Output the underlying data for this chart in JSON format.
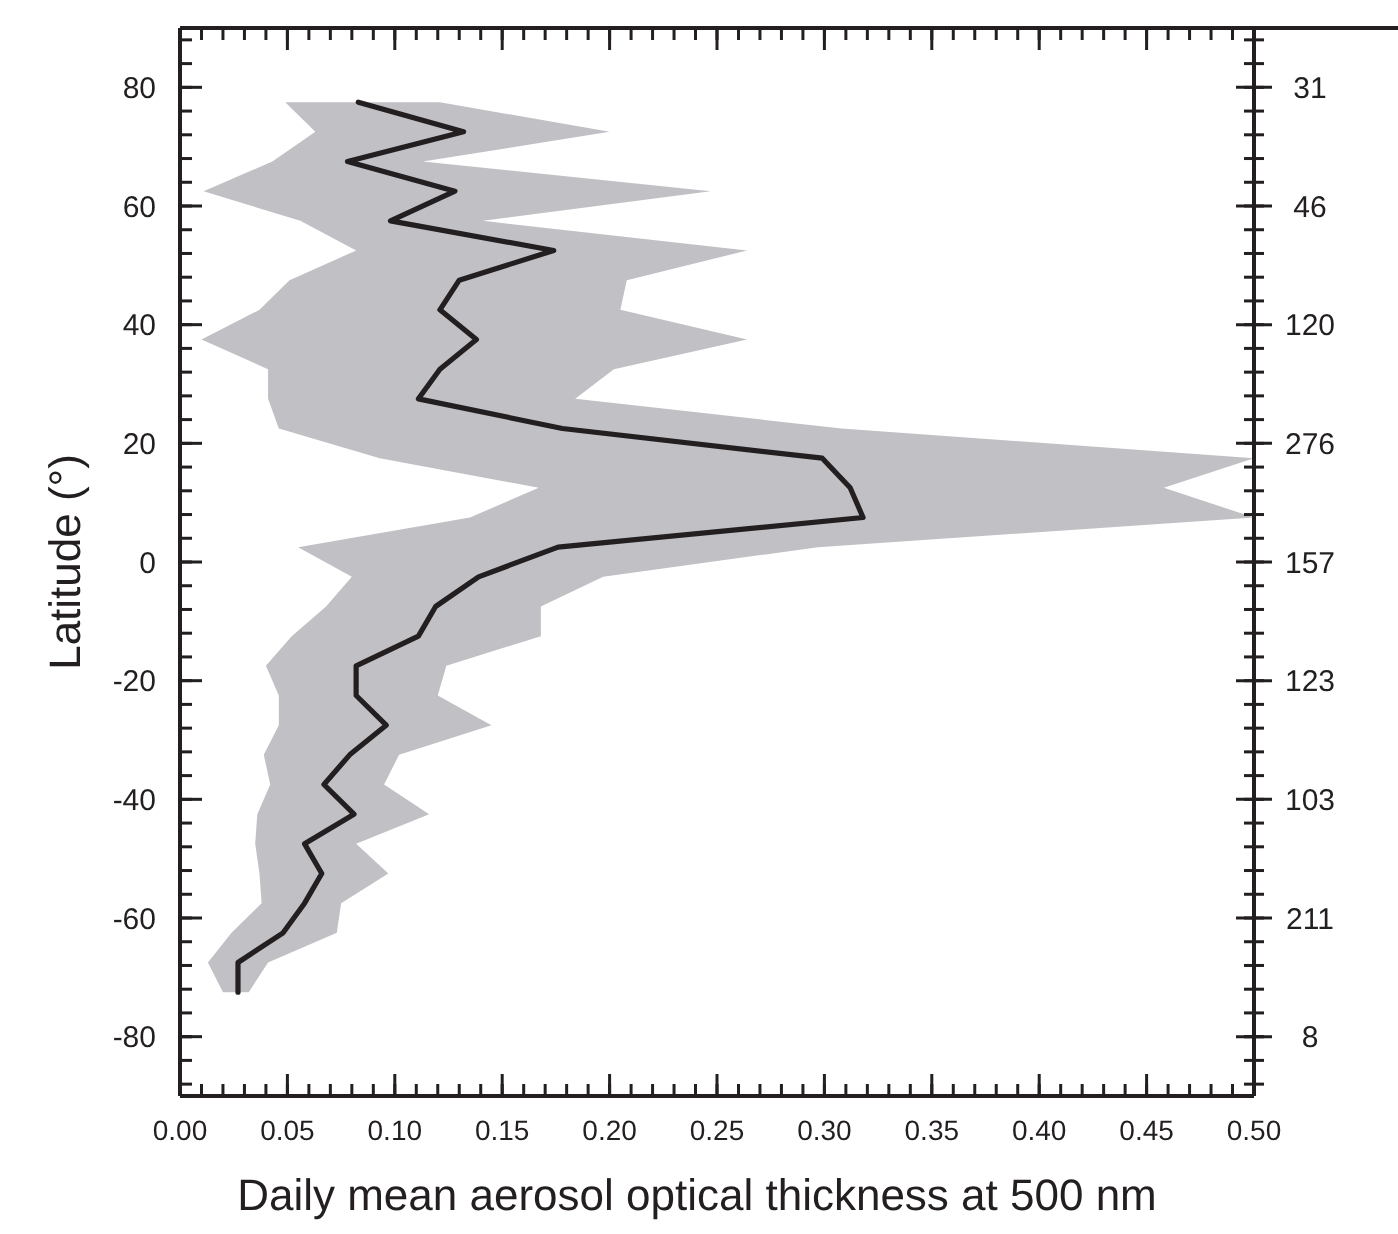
{
  "chart_data": {
    "type": "line",
    "orientation": "horizontal",
    "xlabel": "Daily mean aerosol optical thickness at 500 nm",
    "ylabel": "Latitude (°)",
    "x": [
      77.5,
      72.5,
      67.5,
      62.5,
      57.5,
      52.5,
      47.5,
      42.5,
      37.5,
      32.5,
      27.5,
      22.5,
      17.5,
      12.5,
      7.5,
      2.5,
      -2.5,
      -7.5,
      -12.5,
      -17.5,
      -22.5,
      -27.5,
      -32.5,
      -37.5,
      -42.5,
      -47.5,
      -52.5,
      -57.5,
      -62.5,
      -67.5,
      -72.5
    ],
    "series": [
      {
        "color": "#231f20",
        "values": [
          0.083,
          0.132,
          0.078,
          0.128,
          0.098,
          0.174,
          0.13,
          0.121,
          0.138,
          0.121,
          0.111,
          0.178,
          0.299,
          0.312,
          0.318,
          0.176,
          0.139,
          0.119,
          0.111,
          0.082,
          0.082,
          0.096,
          0.079,
          0.067,
          0.081,
          0.058,
          0.066,
          0.058,
          0.048,
          0.027,
          0.027
        ],
        "lower": [
          0.049,
          0.063,
          0.043,
          0.011,
          0.056,
          0.082,
          0.051,
          0.037,
          0.01,
          0.041,
          0.041,
          0.046,
          0.093,
          0.167,
          0.135,
          0.055,
          0.08,
          0.068,
          0.052,
          0.04,
          0.046,
          0.046,
          0.039,
          0.042,
          0.036,
          0.035,
          0.037,
          0.038,
          0.024,
          0.013,
          0.02
        ],
        "upper": [
          0.121,
          0.2,
          0.113,
          0.247,
          0.141,
          0.264,
          0.208,
          0.205,
          0.264,
          0.202,
          0.184,
          0.308,
          0.5,
          0.458,
          0.5,
          0.297,
          0.197,
          0.168,
          0.168,
          0.124,
          0.12,
          0.145,
          0.102,
          0.095,
          0.116,
          0.082,
          0.097,
          0.075,
          0.073,
          0.041,
          0.032
        ]
      }
    ],
    "xlim": [
      0,
      0.5
    ],
    "xticks": [
      {
        "value": 0,
        "label": "0.00"
      },
      {
        "value": 0.05,
        "label": "0.05"
      },
      {
        "value": 0.1,
        "label": "0.10"
      },
      {
        "value": 0.15,
        "label": "0.15"
      },
      {
        "value": 0.2,
        "label": "0.20"
      },
      {
        "value": 0.25,
        "label": "0.25"
      },
      {
        "value": 0.3,
        "label": "0.30"
      },
      {
        "value": 0.35,
        "label": "0.35"
      },
      {
        "value": 0.4,
        "label": "0.40"
      },
      {
        "value": 0.45,
        "label": "0.45"
      },
      {
        "value": 0.5,
        "label": "0.50"
      }
    ],
    "ylim": [
      -90,
      90
    ],
    "yticks": [
      -80,
      -60,
      -40,
      -20,
      0,
      20,
      40,
      60,
      80
    ],
    "annotations": [
      "31",
      "46",
      "120",
      "276",
      "157",
      "123",
      "103",
      "211",
      "8"
    ],
    "grid": false,
    "marker": "none",
    "line_style": "solid"
  }
}
